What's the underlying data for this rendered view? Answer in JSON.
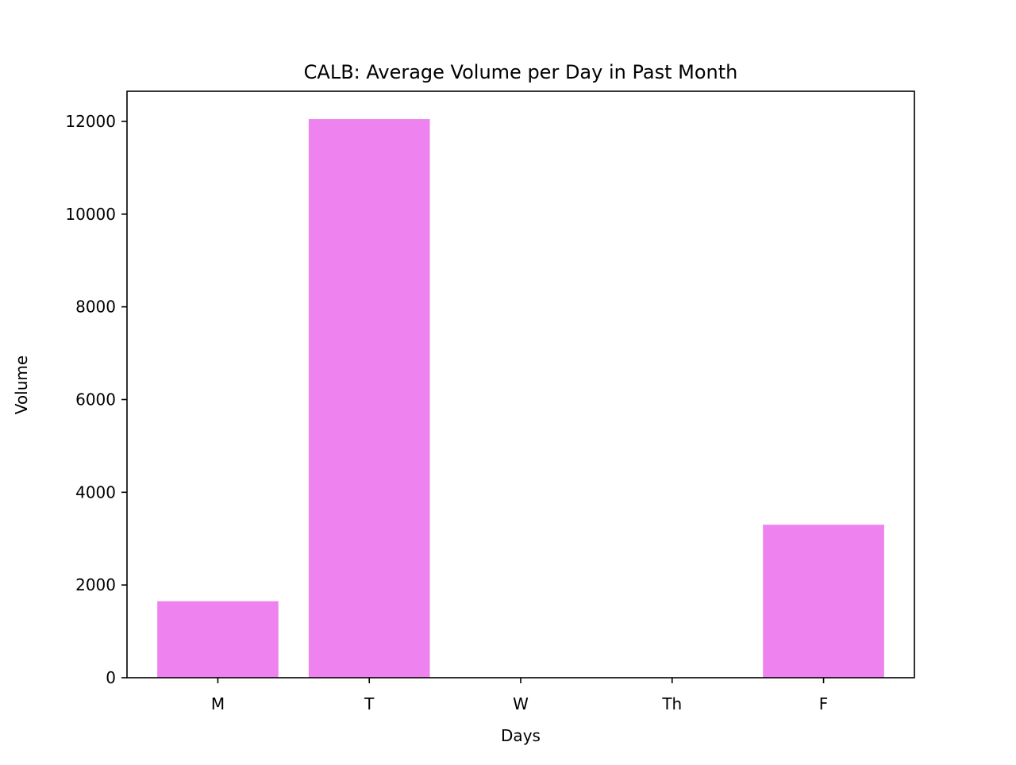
{
  "chart_data": {
    "type": "bar",
    "title": "CALB: Average Volume per Day in Past Month",
    "xlabel": "Days",
    "ylabel": "Volume",
    "categories": [
      "M",
      "T",
      "W",
      "Th",
      "F"
    ],
    "values": [
      1650,
      12050,
      0,
      0,
      3300
    ],
    "ylim": [
      0,
      12650
    ],
    "yticks": [
      0,
      2000,
      4000,
      6000,
      8000,
      10000,
      12000
    ],
    "ytick_labels": [
      "0",
      "2000",
      "4000",
      "6000",
      "8000",
      "10000",
      "12000"
    ],
    "grid": false,
    "legend": "none",
    "bar_color": "#ee82ee"
  }
}
